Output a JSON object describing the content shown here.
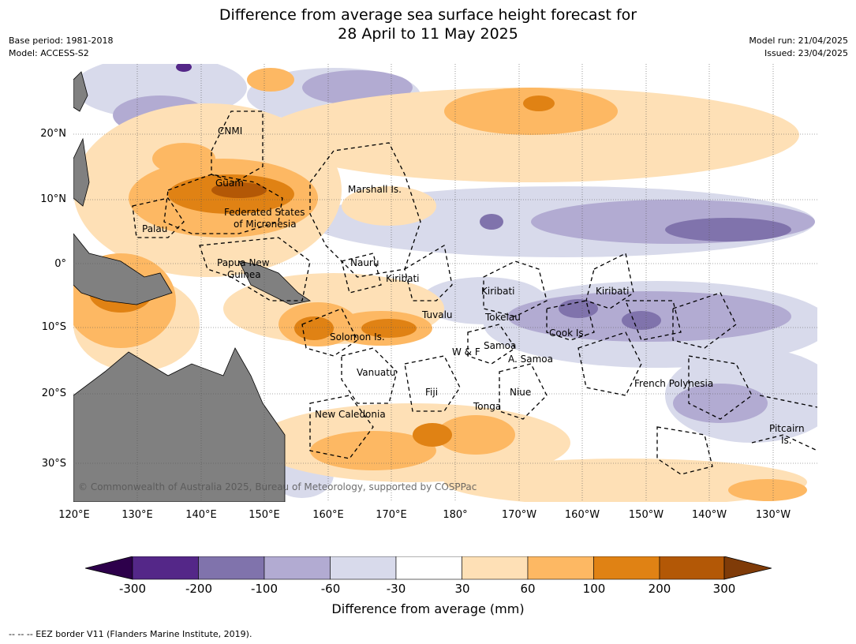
{
  "title_line1": "Difference from average sea surface height forecast for",
  "title_line2": "28 April to 11 May 2025",
  "base_period": "Base period: 1981-2018",
  "model": "Model: ACCESS-S2",
  "model_run": "Model run: 21/04/2025",
  "issued": "Issued: 23/04/2025",
  "copyright": "© Commonwealth of Australia 2025, Bureau of Meteorology, supported by COSPPac",
  "lat_labels": [
    "20°N",
    "10°N",
    "0°",
    "10°S",
    "20°S",
    "30°S"
  ],
  "lon_labels": [
    "120°E",
    "130°E",
    "140°E",
    "150°E",
    "160°E",
    "170°E",
    "180°",
    "170°W",
    "160°W",
    "150°W",
    "140°W",
    "130°W"
  ],
  "places": [
    {
      "name": "CNMI"
    },
    {
      "name": "Guam"
    },
    {
      "name": "Marshall Is."
    },
    {
      "name": "Federated States"
    },
    {
      "name": "of Micronesia"
    },
    {
      "name": "Palau"
    },
    {
      "name": "Papua New"
    },
    {
      "name": "Guinea"
    },
    {
      "name": "Nauru"
    },
    {
      "name": "Kiribati"
    },
    {
      "name": "Kiribati"
    },
    {
      "name": "Kiribati"
    },
    {
      "name": "Tuvalu"
    },
    {
      "name": "Tokelau"
    },
    {
      "name": "Solomon Is."
    },
    {
      "name": "Cook Is."
    },
    {
      "name": "Samoa"
    },
    {
      "name": "W & F"
    },
    {
      "name": "A. Samoa"
    },
    {
      "name": "Vanuatu"
    },
    {
      "name": "Fiji"
    },
    {
      "name": "Niue"
    },
    {
      "name": "French Polynesia"
    },
    {
      "name": "Tonga"
    },
    {
      "name": "New Caledonia"
    },
    {
      "name": "Pitcairn"
    },
    {
      "name": "Is."
    }
  ],
  "colorbar": {
    "ticks": [
      "-300",
      "-200",
      "-100",
      "-60",
      "-30",
      "30",
      "60",
      "100",
      "200",
      "300"
    ],
    "colors": [
      "#2d004b",
      "#542788",
      "#8073ac",
      "#b2abd2",
      "#d8daeb",
      "#ffffff",
      "#fee0b6",
      "#fdb863",
      "#e08214",
      "#b35806",
      "#7f3b08"
    ],
    "title": "Difference from average (mm)"
  },
  "footer": "-- -- -- EEZ border V11 (Flanders Marine Institute, 2019)."
}
